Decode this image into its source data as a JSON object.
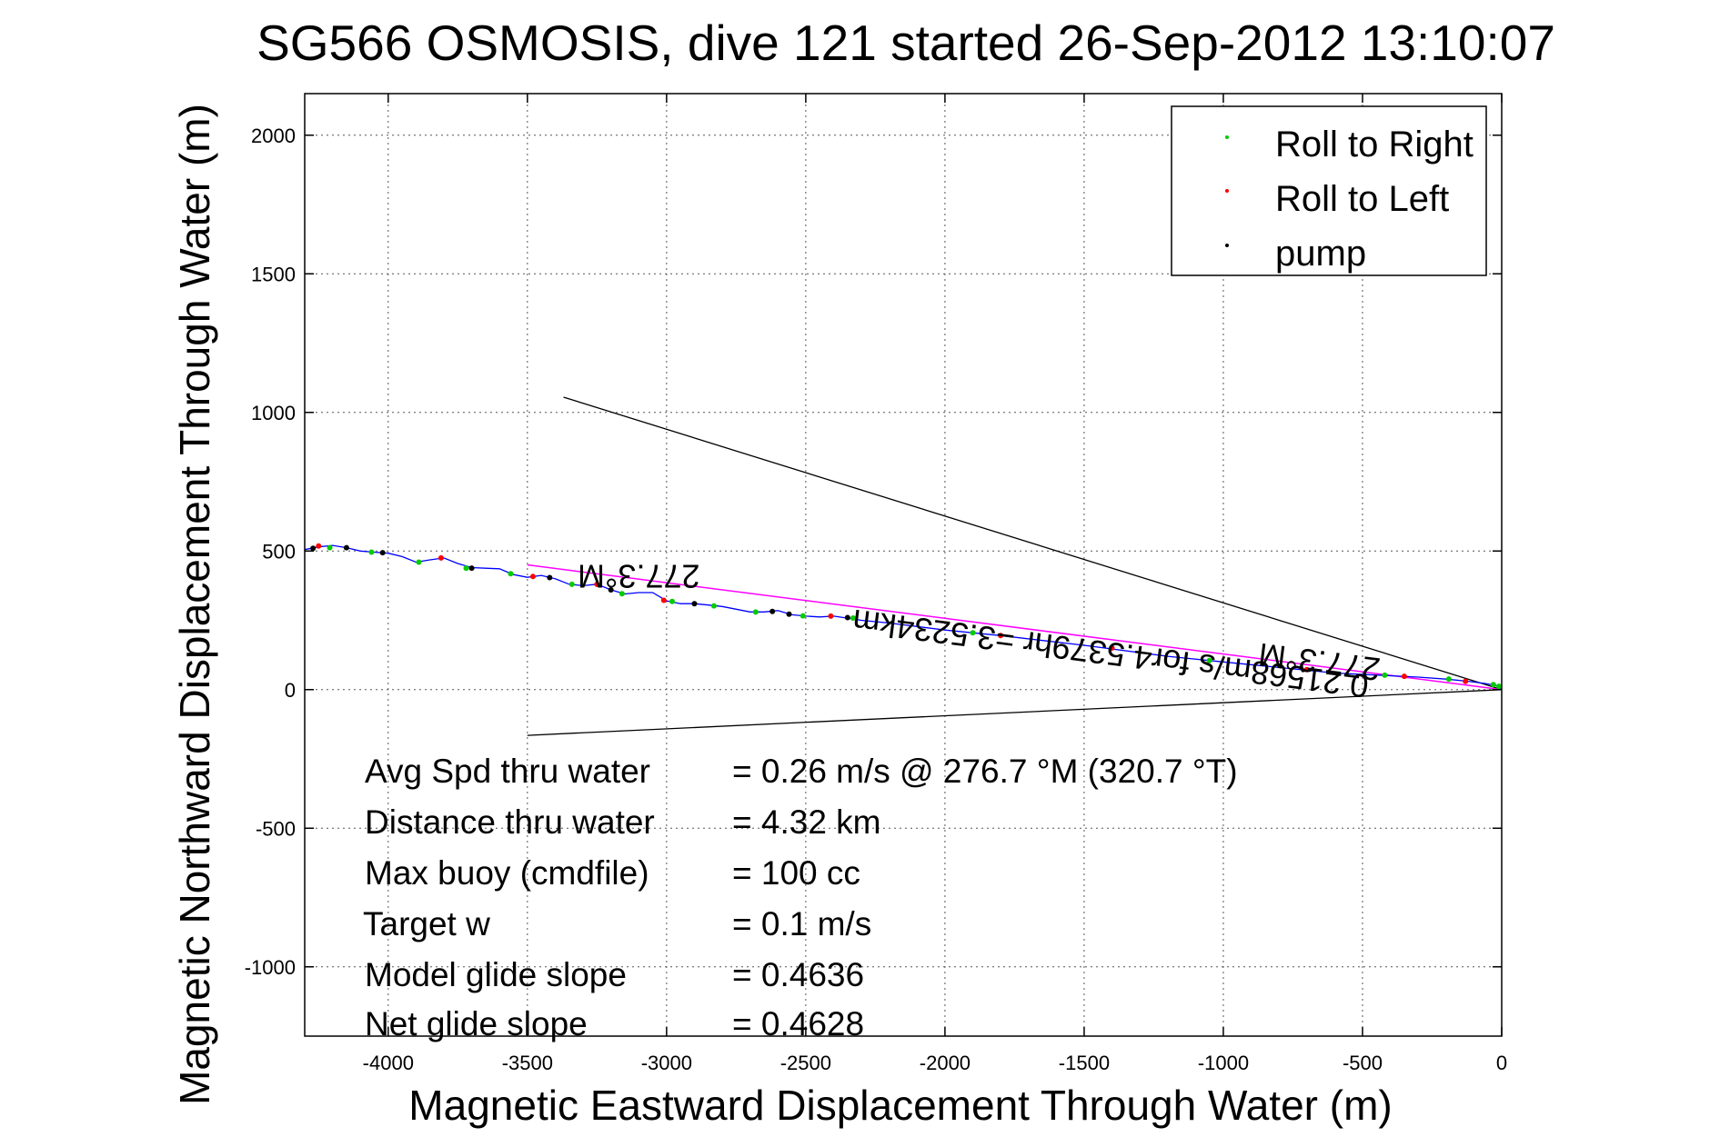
{
  "chart_data": {
    "type": "line",
    "title": "SG566 OSMOSIS, dive 121 started 26-Sep-2012 13:10:07",
    "xlabel": "Magnetic Eastward Displacement Through Water (m)",
    "ylabel": "Magnetic Northward Displacement Through Water (m)",
    "xlim": [
      -4300,
      0
    ],
    "ylim": [
      -1250,
      2150
    ],
    "xticks": [
      -4000,
      -3500,
      -3000,
      -2500,
      -2000,
      -1500,
      -1000,
      -500,
      0
    ],
    "yticks": [
      -1000,
      -500,
      0,
      500,
      1000,
      1500,
      2000
    ],
    "grid": true,
    "legend_position": "top-right",
    "legend": [
      {
        "label": "Roll to Right",
        "color": "#00cc00"
      },
      {
        "label": "Roll to Left",
        "color": "#ff0000"
      },
      {
        "label": "pump",
        "color": "#000000"
      }
    ],
    "track": {
      "color": "#0000ff",
      "points": [
        [
          -4300,
          505
        ],
        [
          -4250,
          515
        ],
        [
          -4200,
          520
        ],
        [
          -4150,
          512
        ],
        [
          -4100,
          500
        ],
        [
          -4050,
          496
        ],
        [
          -4000,
          492
        ],
        [
          -3950,
          480
        ],
        [
          -3900,
          460
        ],
        [
          -3850,
          468
        ],
        [
          -3800,
          475
        ],
        [
          -3750,
          455
        ],
        [
          -3700,
          440
        ],
        [
          -3650,
          438
        ],
        [
          -3600,
          436
        ],
        [
          -3550,
          415
        ],
        [
          -3500,
          405
        ],
        [
          -3450,
          412
        ],
        [
          -3400,
          400
        ],
        [
          -3350,
          380
        ],
        [
          -3300,
          375
        ],
        [
          -3250,
          380
        ],
        [
          -3200,
          360
        ],
        [
          -3150,
          345
        ],
        [
          -3100,
          350
        ],
        [
          -3050,
          350
        ],
        [
          -3000,
          320
        ],
        [
          -2950,
          310
        ],
        [
          -2900,
          310
        ],
        [
          -2850,
          305
        ],
        [
          -2800,
          300
        ],
        [
          -2750,
          290
        ],
        [
          -2700,
          280
        ],
        [
          -2650,
          280
        ],
        [
          -2600,
          285
        ],
        [
          -2550,
          270
        ],
        [
          -2500,
          265
        ],
        [
          -2450,
          262
        ],
        [
          -2400,
          265
        ],
        [
          -2350,
          258
        ],
        [
          -2300,
          250
        ],
        [
          -2200,
          240
        ],
        [
          -2000,
          215
        ],
        [
          -1800,
          195
        ],
        [
          -1500,
          160
        ],
        [
          -1200,
          120
        ],
        [
          -1000,
          100
        ],
        [
          -800,
          80
        ],
        [
          -600,
          60
        ],
        [
          -400,
          50
        ],
        [
          -300,
          45
        ],
        [
          -200,
          38
        ],
        [
          -120,
          30
        ],
        [
          -60,
          22
        ],
        [
          -20,
          15
        ],
        [
          0,
          0
        ]
      ]
    },
    "roll_right_points": [
      [
        -4210,
        512
      ],
      [
        -4060,
        496
      ],
      [
        -3890,
        460
      ],
      [
        -3720,
        438
      ],
      [
        -3560,
        418
      ],
      [
        -3340,
        380
      ],
      [
        -3160,
        346
      ],
      [
        -2980,
        318
      ],
      [
        -2830,
        302
      ],
      [
        -2680,
        280
      ],
      [
        -2510,
        266
      ],
      [
        -2330,
        258
      ],
      [
        -1900,
        205
      ],
      [
        -1050,
        105
      ],
      [
        -420,
        52
      ],
      [
        -190,
        38
      ],
      [
        -30,
        18
      ],
      [
        -10,
        12
      ]
    ],
    "roll_left_points": [
      [
        -4250,
        518
      ],
      [
        -3810,
        475
      ],
      [
        -3480,
        408
      ],
      [
        -3250,
        380
      ],
      [
        -3010,
        322
      ],
      [
        -2410,
        265
      ],
      [
        -1800,
        195
      ],
      [
        -1400,
        150
      ],
      [
        -700,
        72
      ],
      [
        -350,
        48
      ],
      [
        -130,
        30
      ]
    ],
    "pump_points": [
      [
        -4270,
        510
      ],
      [
        -4150,
        512
      ],
      [
        -4020,
        494
      ],
      [
        -3700,
        438
      ],
      [
        -3420,
        404
      ],
      [
        -3200,
        360
      ],
      [
        -2900,
        310
      ],
      [
        -2620,
        282
      ],
      [
        -2560,
        272
      ],
      [
        -2350,
        260
      ]
    ],
    "mean_track_line": {
      "color": "#ff00ff",
      "points": [
        [
          -3500,
          450
        ],
        [
          0,
          0
        ]
      ]
    },
    "heading_wedge": {
      "color": "#000000",
      "upper": [
        [
          -3370,
          1055
        ],
        [
          0,
          0
        ]
      ],
      "lower": [
        [
          -3500,
          -165
        ],
        [
          0,
          0
        ]
      ]
    },
    "annotations": [
      {
        "text": "277.3°M",
        "x": -3100,
        "y": 450,
        "rotate": 180
      },
      {
        "text": "0.21568m/s for4.5379hr =3.5234km",
        "x": -1400,
        "y": 170,
        "rotate": 187.3
      },
      {
        "text": "277.3°M",
        "x": -650,
        "y": 140,
        "rotate": 187.3
      }
    ],
    "stats": [
      {
        "label": "Avg Spd thru water",
        "value": "=  0.26 m/s @ 276.7 °M (320.7 °T)"
      },
      {
        "label": "Distance thru water",
        "value": "=  4.32 km"
      },
      {
        "label": "Max buoy (cmdfile)",
        "value": "= 100 cc"
      },
      {
        "label": "Target w",
        "value": "= 0.1 m/s"
      },
      {
        "label": "Model glide slope",
        "value": "= 0.4636"
      },
      {
        "label": "Net glide slope",
        "value": "= 0.4628"
      }
    ]
  }
}
